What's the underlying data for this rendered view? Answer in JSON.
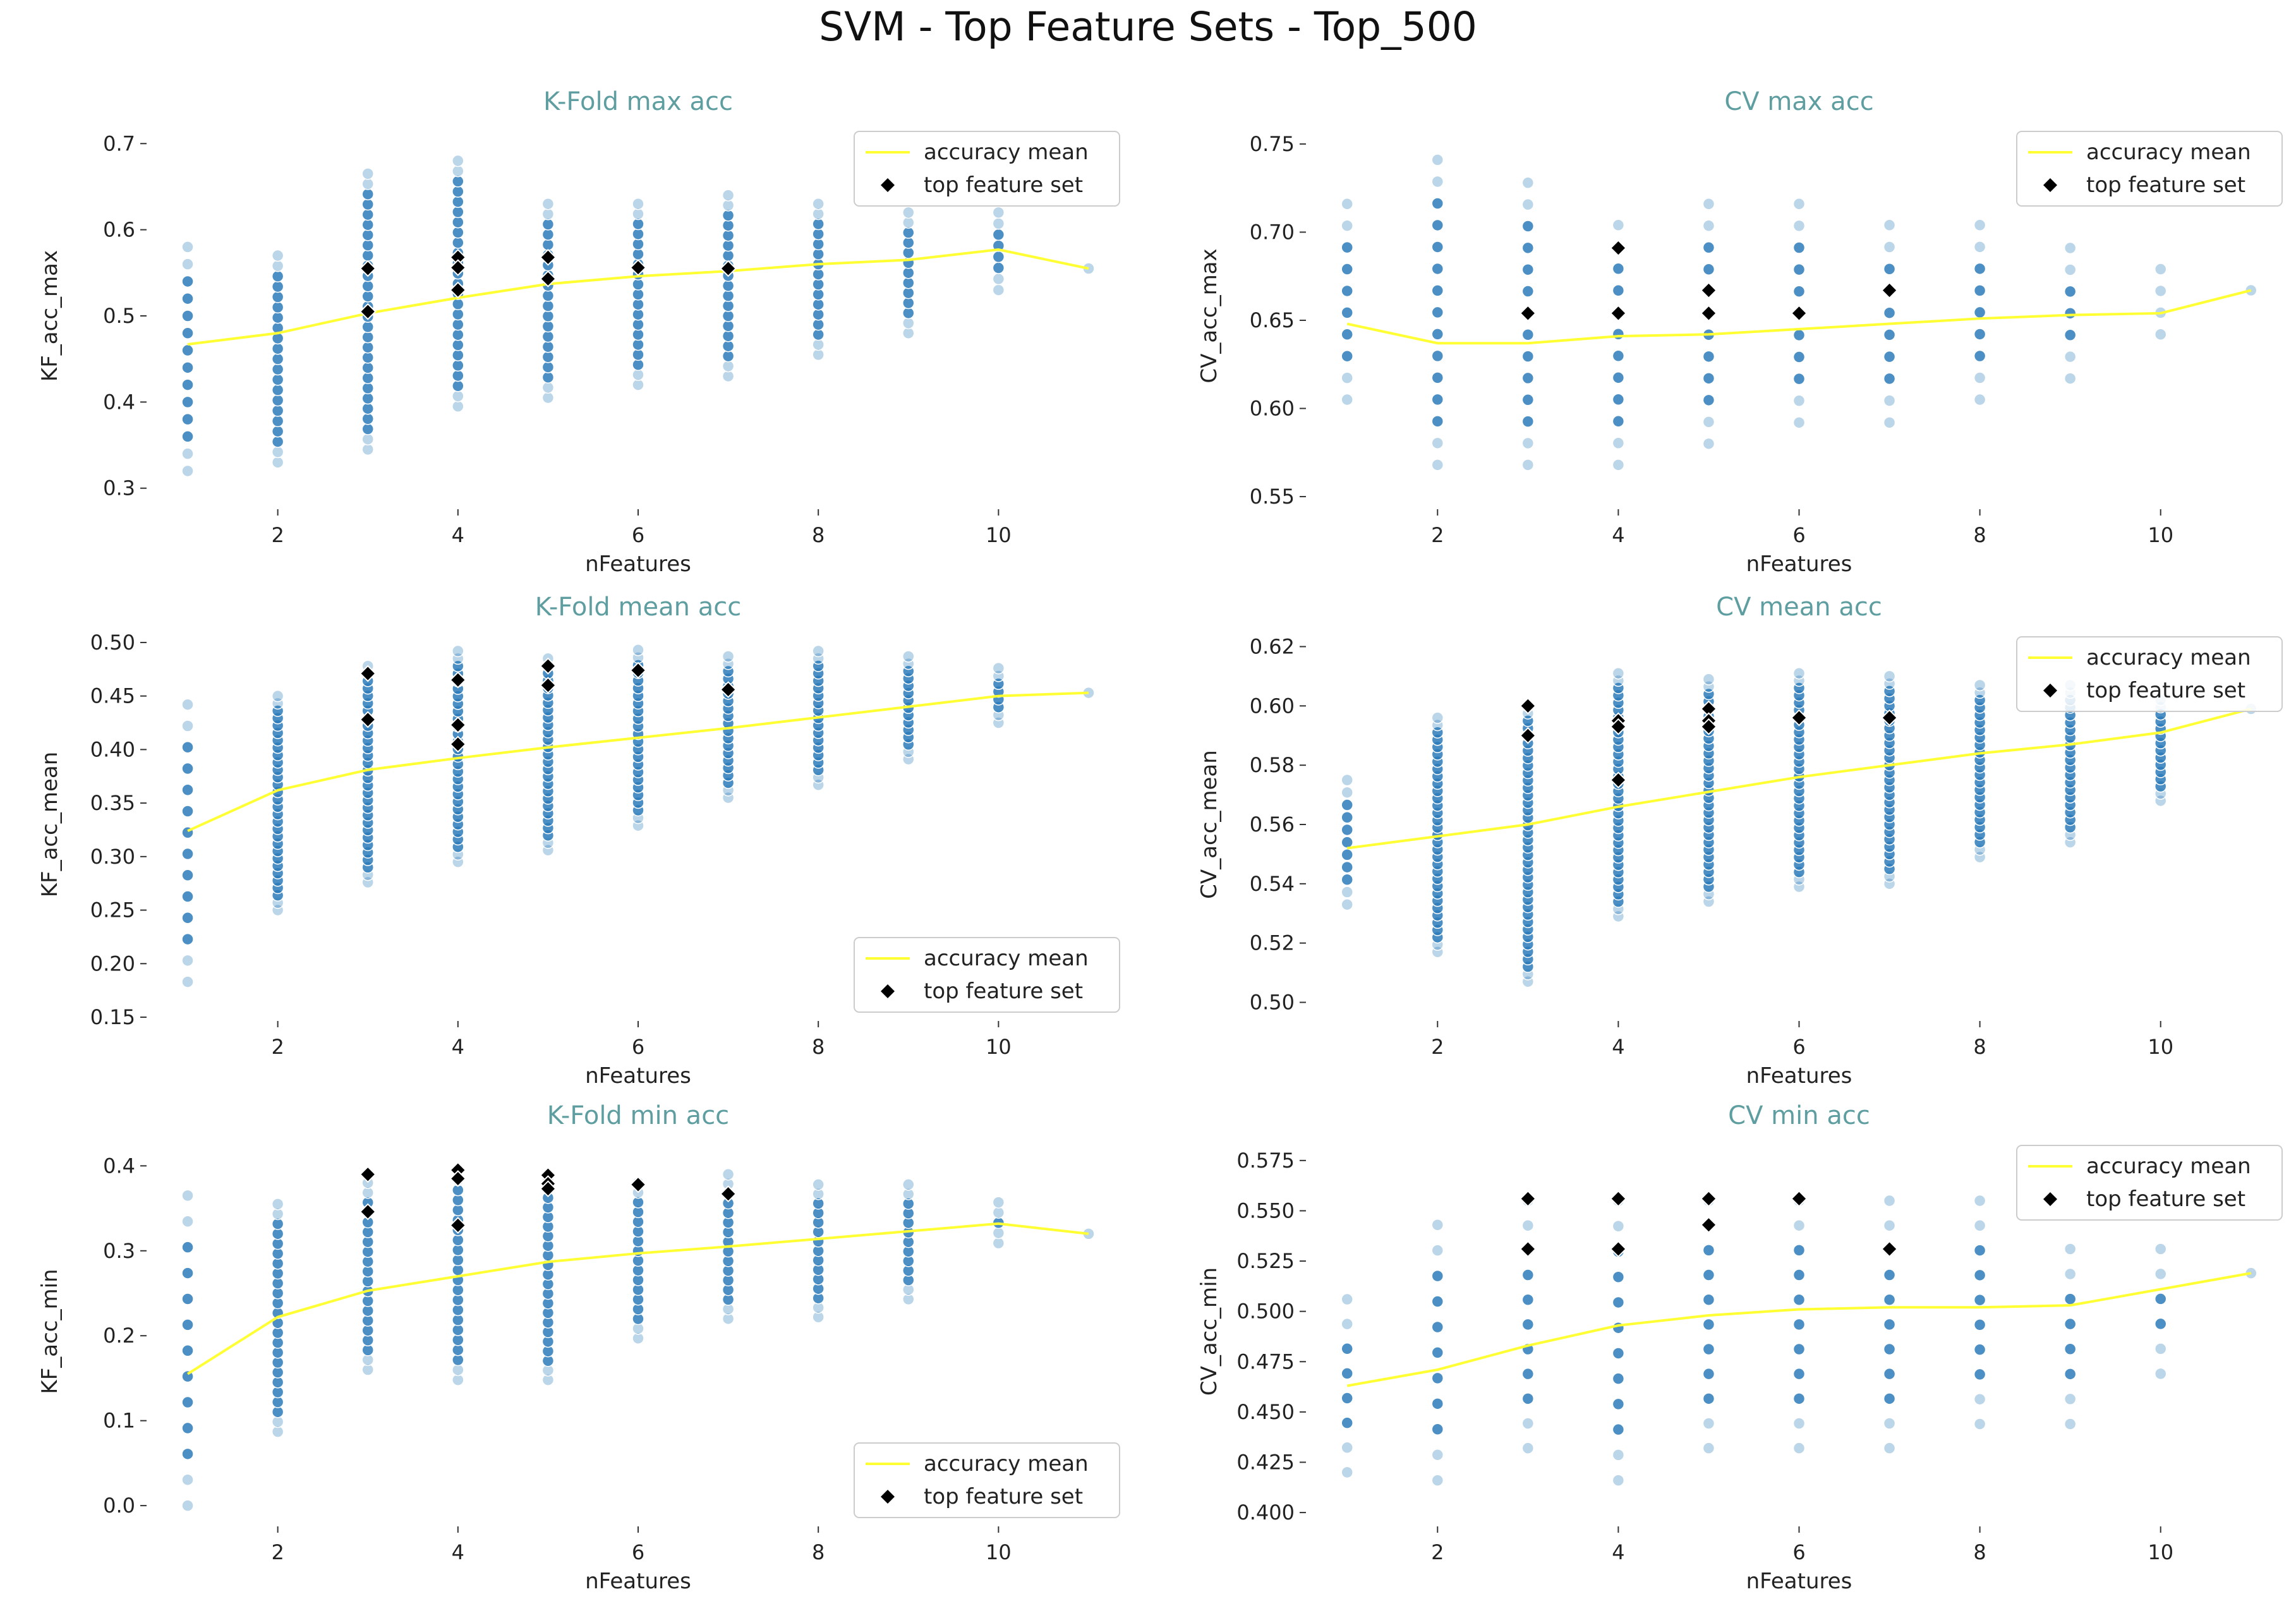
{
  "suptitle": "SVM - Top Feature Sets - Top_500",
  "style": {
    "mean_line_color": "#ffff33",
    "scatter_color": "#2b7bba",
    "top_marker_color": "#000000",
    "title_color": "#5f9ea0"
  },
  "legend": {
    "mean_label": "accuracy mean",
    "top_label": "top feature set"
  },
  "chart_data": [
    {
      "type": "scatter",
      "title": "K-Fold max acc",
      "xlabel": "nFeatures",
      "ylabel": "KF_acc_max",
      "xlim": [
        0.6,
        11.4
      ],
      "ylim": [
        0.28,
        0.72
      ],
      "xticks": [
        2,
        4,
        6,
        8,
        10
      ],
      "yticks": [
        0.3,
        0.4,
        0.5,
        0.6,
        0.7
      ],
      "ytick_labels": [
        "0.3",
        "0.4",
        "0.5",
        "0.6",
        "0.7"
      ],
      "legend_loc": "upper right",
      "scatter_ranges": [
        {
          "x": 1,
          "min": 0.32,
          "max": 0.58,
          "step": 0.02
        },
        {
          "x": 2,
          "min": 0.33,
          "max": 0.57,
          "step": 0.012
        },
        {
          "x": 3,
          "min": 0.345,
          "max": 0.665,
          "step": 0.012
        },
        {
          "x": 4,
          "min": 0.395,
          "max": 0.68,
          "step": 0.012
        },
        {
          "x": 5,
          "min": 0.405,
          "max": 0.63,
          "step": 0.012
        },
        {
          "x": 6,
          "min": 0.42,
          "max": 0.63,
          "step": 0.012
        },
        {
          "x": 7,
          "min": 0.43,
          "max": 0.64,
          "step": 0.012
        },
        {
          "x": 8,
          "min": 0.455,
          "max": 0.63,
          "step": 0.012
        },
        {
          "x": 9,
          "min": 0.48,
          "max": 0.62,
          "step": 0.012
        },
        {
          "x": 10,
          "min": 0.53,
          "max": 0.62,
          "step": 0.012
        },
        {
          "x": 11,
          "min": 0.555,
          "max": 0.555,
          "step": 0.012
        }
      ],
      "mean_line": {
        "x": [
          1,
          2,
          3,
          4,
          5,
          6,
          7,
          8,
          9,
          10,
          11
        ],
        "y": [
          0.467,
          0.48,
          0.503,
          0.521,
          0.537,
          0.546,
          0.552,
          0.56,
          0.565,
          0.577,
          0.555
        ]
      },
      "top_sets": {
        "x": [
          3,
          3,
          4,
          4,
          4,
          5,
          5,
          6,
          7
        ],
        "y": [
          0.555,
          0.505,
          0.568,
          0.556,
          0.53,
          0.568,
          0.543,
          0.556,
          0.555
        ]
      }
    },
    {
      "type": "scatter",
      "title": "CV max acc",
      "xlabel": "nFeatures",
      "ylabel": "CV_acc_max",
      "xlim": [
        0.6,
        11.4
      ],
      "ylim": [
        0.545,
        0.76
      ],
      "xticks": [
        2,
        4,
        6,
        8,
        10
      ],
      "yticks": [
        0.55,
        0.6,
        0.65,
        0.7,
        0.75
      ],
      "ytick_labels": [
        "0.55",
        "0.60",
        "0.65",
        "0.70",
        "0.75"
      ],
      "legend_loc": "upper right",
      "scatter_ranges": [
        {
          "x": 1,
          "min": 0.605,
          "max": 0.716,
          "step": 0.0123
        },
        {
          "x": 2,
          "min": 0.568,
          "max": 0.741,
          "step": 0.0123
        },
        {
          "x": 3,
          "min": 0.568,
          "max": 0.728,
          "step": 0.0123
        },
        {
          "x": 4,
          "min": 0.568,
          "max": 0.704,
          "step": 0.0123
        },
        {
          "x": 5,
          "min": 0.58,
          "max": 0.716,
          "step": 0.0123
        },
        {
          "x": 6,
          "min": 0.592,
          "max": 0.716,
          "step": 0.0123
        },
        {
          "x": 7,
          "min": 0.592,
          "max": 0.704,
          "step": 0.0123
        },
        {
          "x": 8,
          "min": 0.605,
          "max": 0.704,
          "step": 0.0123
        },
        {
          "x": 9,
          "min": 0.617,
          "max": 0.691,
          "step": 0.0123
        },
        {
          "x": 10,
          "min": 0.642,
          "max": 0.679,
          "step": 0.0123
        },
        {
          "x": 11,
          "min": 0.667,
          "max": 0.667,
          "step": 0.0123
        }
      ],
      "mean_line": {
        "x": [
          1,
          2,
          3,
          4,
          5,
          6,
          7,
          8,
          9,
          10,
          11
        ],
        "y": [
          0.648,
          0.637,
          0.637,
          0.641,
          0.642,
          0.645,
          0.648,
          0.651,
          0.653,
          0.654,
          0.667
        ]
      },
      "top_sets": {
        "x": [
          3,
          4,
          4,
          5,
          5,
          6,
          7
        ],
        "y": [
          0.654,
          0.691,
          0.654,
          0.667,
          0.654,
          0.654,
          0.667
        ]
      }
    },
    {
      "type": "scatter",
      "title": "K-Fold mean acc",
      "xlabel": "nFeatures",
      "ylabel": "KF_acc_mean",
      "xlim": [
        0.6,
        11.4
      ],
      "ylim": [
        0.15,
        0.51
      ],
      "xticks": [
        2,
        4,
        6,
        8,
        10
      ],
      "yticks": [
        0.15,
        0.2,
        0.25,
        0.3,
        0.35,
        0.4,
        0.45,
        0.5
      ],
      "ytick_labels": [
        "0.15",
        "0.20",
        "0.25",
        "0.30",
        "0.35",
        "0.40",
        "0.45",
        "0.50"
      ],
      "legend_loc": "lower right",
      "scatter_ranges": [
        {
          "x": 1,
          "min": 0.183,
          "max": 0.442,
          "step": 0.02
        },
        {
          "x": 2,
          "min": 0.25,
          "max": 0.45,
          "step": 0.007
        },
        {
          "x": 3,
          "min": 0.276,
          "max": 0.478,
          "step": 0.007
        },
        {
          "x": 4,
          "min": 0.295,
          "max": 0.492,
          "step": 0.007
        },
        {
          "x": 5,
          "min": 0.306,
          "max": 0.485,
          "step": 0.007
        },
        {
          "x": 6,
          "min": 0.329,
          "max": 0.493,
          "step": 0.007
        },
        {
          "x": 7,
          "min": 0.355,
          "max": 0.487,
          "step": 0.007
        },
        {
          "x": 8,
          "min": 0.367,
          "max": 0.492,
          "step": 0.007
        },
        {
          "x": 9,
          "min": 0.391,
          "max": 0.487,
          "step": 0.007
        },
        {
          "x": 10,
          "min": 0.425,
          "max": 0.476,
          "step": 0.007
        },
        {
          "x": 11,
          "min": 0.453,
          "max": 0.453,
          "step": 0.007
        }
      ],
      "mean_line": {
        "x": [
          1,
          2,
          3,
          4,
          5,
          6,
          7,
          8,
          9,
          10,
          11
        ],
        "y": [
          0.324,
          0.362,
          0.381,
          0.392,
          0.402,
          0.411,
          0.42,
          0.43,
          0.44,
          0.45,
          0.453
        ]
      },
      "top_sets": {
        "x": [
          3,
          3,
          4,
          4,
          4,
          5,
          5,
          6,
          7
        ],
        "y": [
          0.471,
          0.428,
          0.465,
          0.423,
          0.405,
          0.478,
          0.46,
          0.474,
          0.456
        ]
      }
    },
    {
      "type": "scatter",
      "title": "CV mean acc",
      "xlabel": "nFeatures",
      "ylabel": "CV_acc_mean",
      "xlim": [
        0.6,
        11.4
      ],
      "ylim": [
        0.495,
        0.625
      ],
      "xticks": [
        2,
        4,
        6,
        8,
        10
      ],
      "yticks": [
        0.5,
        0.52,
        0.54,
        0.56,
        0.58,
        0.6,
        0.62
      ],
      "ytick_labels": [
        "0.50",
        "0.52",
        "0.54",
        "0.56",
        "0.58",
        "0.60",
        "0.62"
      ],
      "legend_loc": "upper right",
      "scatter_ranges": [
        {
          "x": 1,
          "min": 0.533,
          "max": 0.575,
          "step": 0.004
        },
        {
          "x": 2,
          "min": 0.517,
          "max": 0.596,
          "step": 0.0025
        },
        {
          "x": 3,
          "min": 0.507,
          "max": 0.6,
          "step": 0.0025
        },
        {
          "x": 4,
          "min": 0.529,
          "max": 0.611,
          "step": 0.0025
        },
        {
          "x": 5,
          "min": 0.534,
          "max": 0.609,
          "step": 0.0025
        },
        {
          "x": 6,
          "min": 0.539,
          "max": 0.611,
          "step": 0.0025
        },
        {
          "x": 7,
          "min": 0.54,
          "max": 0.61,
          "step": 0.0025
        },
        {
          "x": 8,
          "min": 0.549,
          "max": 0.607,
          "step": 0.0025
        },
        {
          "x": 9,
          "min": 0.554,
          "max": 0.607,
          "step": 0.0025
        },
        {
          "x": 10,
          "min": 0.568,
          "max": 0.602,
          "step": 0.0025
        },
        {
          "x": 11,
          "min": 0.599,
          "max": 0.599,
          "step": 0.0025
        }
      ],
      "mean_line": {
        "x": [
          1,
          2,
          3,
          4,
          5,
          6,
          7,
          8,
          9,
          10,
          11
        ],
        "y": [
          0.552,
          0.556,
          0.56,
          0.566,
          0.571,
          0.576,
          0.58,
          0.584,
          0.587,
          0.591,
          0.599
        ]
      },
      "top_sets": {
        "x": [
          3,
          3,
          4,
          4,
          4,
          5,
          5,
          5,
          6,
          7
        ],
        "y": [
          0.6,
          0.59,
          0.595,
          0.593,
          0.575,
          0.599,
          0.595,
          0.593,
          0.596,
          0.596
        ]
      }
    },
    {
      "type": "scatter",
      "title": "K-Fold min acc",
      "xlabel": "nFeatures",
      "ylabel": "KF_acc_min",
      "xlim": [
        0.6,
        11.4
      ],
      "ylim": [
        -0.02,
        0.43
      ],
      "xticks": [
        2,
        4,
        6,
        8,
        10
      ],
      "yticks": [
        0.0,
        0.1,
        0.2,
        0.3,
        0.4
      ],
      "ytick_labels": [
        "0.0",
        "0.1",
        "0.2",
        "0.3",
        "0.4"
      ],
      "legend_loc": "lower right",
      "scatter_ranges": [
        {
          "x": 1,
          "min": 0.0,
          "max": 0.365,
          "step": 0.03
        },
        {
          "x": 2,
          "min": 0.087,
          "max": 0.355,
          "step": 0.0115
        },
        {
          "x": 3,
          "min": 0.16,
          "max": 0.38,
          "step": 0.0115
        },
        {
          "x": 4,
          "min": 0.148,
          "max": 0.395,
          "step": 0.0115
        },
        {
          "x": 5,
          "min": 0.148,
          "max": 0.385,
          "step": 0.0115
        },
        {
          "x": 6,
          "min": 0.197,
          "max": 0.38,
          "step": 0.0115
        },
        {
          "x": 7,
          "min": 0.22,
          "max": 0.39,
          "step": 0.0115
        },
        {
          "x": 8,
          "min": 0.222,
          "max": 0.378,
          "step": 0.0115
        },
        {
          "x": 9,
          "min": 0.243,
          "max": 0.378,
          "step": 0.0115
        },
        {
          "x": 10,
          "min": 0.309,
          "max": 0.357,
          "step": 0.0115
        },
        {
          "x": 11,
          "min": 0.32,
          "max": 0.32,
          "step": 0.0115
        }
      ],
      "mean_line": {
        "x": [
          1,
          2,
          3,
          4,
          5,
          6,
          7,
          8,
          9,
          10,
          11
        ],
        "y": [
          0.155,
          0.222,
          0.253,
          0.27,
          0.287,
          0.297,
          0.305,
          0.314,
          0.323,
          0.332,
          0.32
        ]
      },
      "top_sets": {
        "x": [
          3,
          3,
          4,
          4,
          4,
          5,
          5,
          5,
          6,
          7
        ],
        "y": [
          0.39,
          0.346,
          0.395,
          0.385,
          0.33,
          0.389,
          0.379,
          0.373,
          0.378,
          0.367
        ]
      }
    },
    {
      "type": "scatter",
      "title": "CV min acc",
      "xlabel": "nFeatures",
      "ylabel": "CV_acc_min",
      "xlim": [
        0.6,
        11.4
      ],
      "ylim": [
        0.395,
        0.585
      ],
      "xticks": [
        2,
        4,
        6,
        8,
        10
      ],
      "yticks": [
        0.4,
        0.425,
        0.45,
        0.475,
        0.5,
        0.525,
        0.55,
        0.575
      ],
      "ytick_labels": [
        "0.400",
        "0.425",
        "0.450",
        "0.475",
        "0.500",
        "0.525",
        "0.550",
        "0.575"
      ],
      "legend_loc": "upper right",
      "scatter_ranges": [
        {
          "x": 1,
          "min": 0.42,
          "max": 0.506,
          "step": 0.0123
        },
        {
          "x": 2,
          "min": 0.416,
          "max": 0.543,
          "step": 0.0123
        },
        {
          "x": 3,
          "min": 0.432,
          "max": 0.555,
          "step": 0.0123
        },
        {
          "x": 4,
          "min": 0.416,
          "max": 0.555,
          "step": 0.0123
        },
        {
          "x": 5,
          "min": 0.432,
          "max": 0.555,
          "step": 0.0123
        },
        {
          "x": 6,
          "min": 0.432,
          "max": 0.555,
          "step": 0.0123
        },
        {
          "x": 7,
          "min": 0.432,
          "max": 0.555,
          "step": 0.0123
        },
        {
          "x": 8,
          "min": 0.444,
          "max": 0.555,
          "step": 0.0123
        },
        {
          "x": 9,
          "min": 0.444,
          "max": 0.531,
          "step": 0.0123
        },
        {
          "x": 10,
          "min": 0.469,
          "max": 0.531,
          "step": 0.0123
        },
        {
          "x": 11,
          "min": 0.519,
          "max": 0.519,
          "step": 0.0123
        }
      ],
      "mean_line": {
        "x": [
          1,
          2,
          3,
          4,
          5,
          6,
          7,
          8,
          9,
          10,
          11
        ],
        "y": [
          0.463,
          0.471,
          0.483,
          0.493,
          0.498,
          0.501,
          0.502,
          0.502,
          0.503,
          0.511,
          0.519
        ]
      },
      "top_sets": {
        "x": [
          3,
          3,
          4,
          4,
          5,
          5,
          6,
          7
        ],
        "y": [
          0.556,
          0.531,
          0.556,
          0.531,
          0.556,
          0.543,
          0.556,
          0.531
        ]
      }
    }
  ]
}
